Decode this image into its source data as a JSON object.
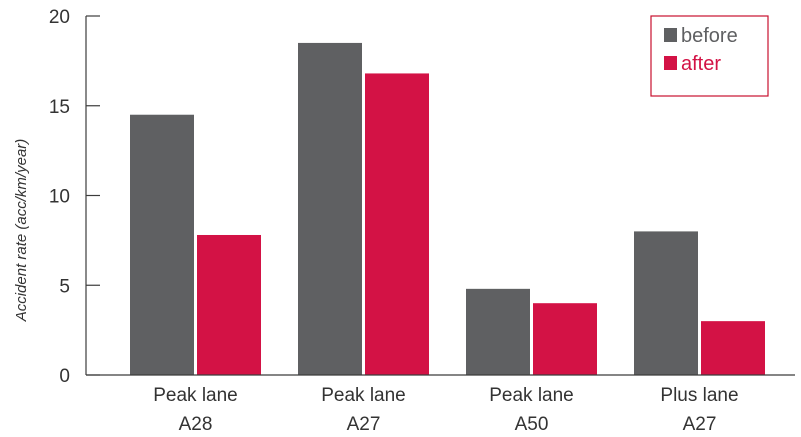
{
  "chart_data": {
    "type": "bar",
    "title": "",
    "xlabel": "",
    "ylabel": "Accident rate (acc/km/year)",
    "ylim": [
      0,
      20
    ],
    "yticks": [
      0,
      5,
      10,
      15,
      20
    ],
    "grid": false,
    "legend_position": "top-right",
    "categories": [
      [
        "Peak lane",
        "A28"
      ],
      [
        "Peak lane",
        "A27"
      ],
      [
        "Peak lane",
        "A50"
      ],
      [
        "Plus lane",
        "A27"
      ]
    ],
    "series": [
      {
        "name": "before",
        "color": "#5f6062",
        "values": [
          14.5,
          18.5,
          4.8,
          8.0
        ]
      },
      {
        "name": "after",
        "color": "#d31245",
        "values": [
          7.8,
          16.8,
          4.0,
          3.0
        ]
      }
    ]
  },
  "colors": {
    "axis": "#3c3c3c",
    "legend_border": "#c8102e",
    "text": "#333333"
  }
}
